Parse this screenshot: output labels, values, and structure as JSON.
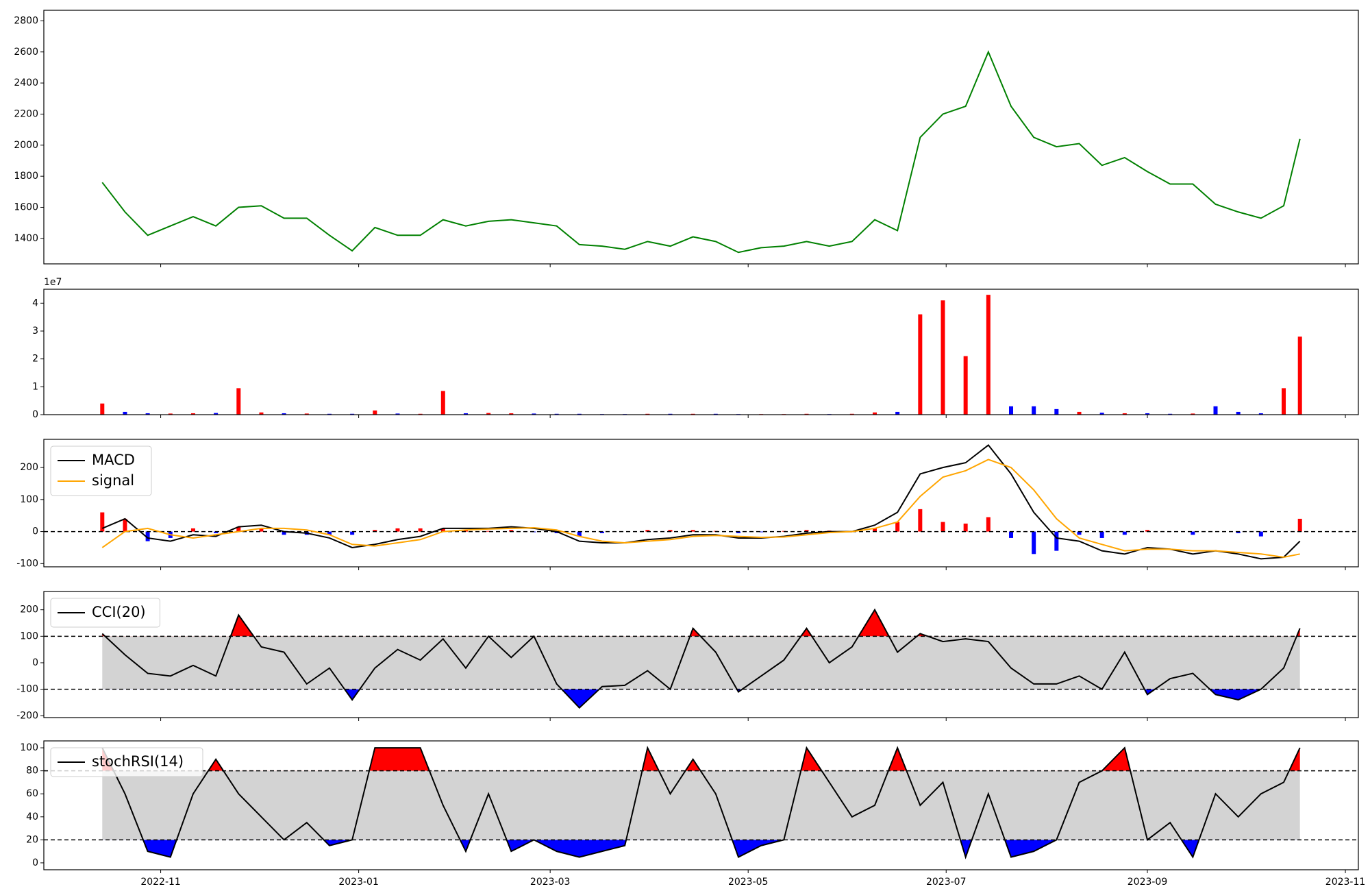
{
  "chart_data": [
    {
      "type": "line",
      "ylim": [
        1236,
        2868
      ],
      "yticks": [
        1400,
        1600,
        1800,
        2000,
        2200,
        2400,
        2600,
        2800
      ],
      "series": [
        {
          "color": "green",
          "values": [
            1760,
            1570,
            1420,
            1480,
            1540,
            1480,
            1600,
            1610,
            1530,
            1530,
            1420,
            1320,
            1470,
            1420,
            1420,
            1520,
            1480,
            1510,
            1520,
            1500,
            1480,
            1360,
            1350,
            1330,
            1380,
            1350,
            1410,
            1380,
            1310,
            1340,
            1350,
            1380,
            1350,
            1380,
            1520,
            1450,
            2050,
            2200,
            2250,
            2600,
            2250,
            2050,
            1990,
            2010,
            1870,
            1920,
            1830,
            1750,
            1750,
            1620,
            1570,
            1530,
            1610,
            2040
          ]
        }
      ]
    },
    {
      "type": "bar",
      "ylim": [
        0,
        45000000
      ],
      "offset_label": "1e7",
      "yticks": [
        {
          "value": 0,
          "label": "0"
        },
        {
          "value": 10000000,
          "label": "1"
        },
        {
          "value": 20000000,
          "label": "2"
        },
        {
          "value": 30000000,
          "label": "3"
        },
        {
          "value": 40000000,
          "label": "4"
        }
      ],
      "up_color": "red",
      "down_color": "blue",
      "values": [
        4000000,
        1000000,
        500000,
        400000,
        500000,
        600000,
        9500000,
        800000,
        500000,
        400000,
        300000,
        300000,
        1500000,
        400000,
        300000,
        8500000,
        500000,
        600000,
        500000,
        400000,
        300000,
        300000,
        200000,
        200000,
        300000,
        300000,
        300000,
        300000,
        200000,
        200000,
        200000,
        300000,
        200000,
        300000,
        800000,
        1000000,
        36000000,
        41000000,
        21000000,
        43000000,
        3000000,
        3000000,
        2000000,
        1000000,
        700000,
        500000,
        500000,
        300000,
        400000,
        3000000,
        1000000,
        500000,
        9500000,
        28000000
      ]
    },
    {
      "type": "line",
      "ylim": [
        -110,
        288
      ],
      "yticks": [
        -100,
        0,
        100,
        200
      ],
      "hlines": [
        0
      ],
      "legend": "upper left",
      "series": [
        {
          "name": "MACD",
          "color": "#000000",
          "values": [
            10,
            40,
            -20,
            -30,
            -10,
            -15,
            15,
            20,
            0,
            -5,
            -20,
            -50,
            -40,
            -25,
            -15,
            10,
            10,
            10,
            15,
            10,
            0,
            -30,
            -35,
            -35,
            -25,
            -20,
            -10,
            -10,
            -20,
            -20,
            -15,
            -5,
            0,
            0,
            20,
            60,
            180,
            200,
            215,
            270,
            180,
            60,
            -20,
            -30,
            -60,
            -70,
            -50,
            -55,
            -70,
            -60,
            -70,
            -85,
            -80,
            -30
          ]
        },
        {
          "name": "signal",
          "color": "orange",
          "values": [
            -50,
            0,
            10,
            -10,
            -20,
            -10,
            0,
            10,
            10,
            5,
            -10,
            -40,
            -45,
            -35,
            -25,
            0,
            5,
            8,
            10,
            12,
            5,
            -15,
            -30,
            -35,
            -30,
            -25,
            -15,
            -12,
            -15,
            -18,
            -17,
            -10,
            -3,
            0,
            10,
            30,
            110,
            170,
            190,
            225,
            200,
            130,
            40,
            -20,
            -40,
            -60,
            -55,
            -55,
            -60,
            -60,
            -65,
            -70,
            -80,
            -70
          ]
        }
      ],
      "histogram": {
        "up_color": "red",
        "down_color": "blue",
        "values": [
          60,
          40,
          -30,
          -20,
          10,
          -5,
          15,
          10,
          -10,
          -10,
          -10,
          -10,
          5,
          10,
          10,
          10,
          5,
          2,
          5,
          -2,
          -5,
          -15,
          -5,
          0,
          5,
          5,
          5,
          2,
          -5,
          -2,
          2,
          5,
          3,
          0,
          10,
          30,
          70,
          30,
          25,
          45,
          -20,
          -70,
          -60,
          -10,
          -20,
          -10,
          5,
          0,
          -10,
          0,
          -5,
          -15,
          0,
          40
        ]
      }
    },
    {
      "type": "line",
      "ylim": [
        -207,
        269
      ],
      "yticks": [
        -200,
        -100,
        0,
        100,
        200
      ],
      "bands": [
        -100,
        100
      ],
      "band_fill": "lightgray",
      "above_color": "red",
      "below_color": "blue",
      "legend": "upper left",
      "series": [
        {
          "name": "CCI(20)",
          "color": "#000000",
          "values": [
            110,
            30,
            -40,
            -50,
            -10,
            -50,
            180,
            60,
            40,
            -80,
            -20,
            -140,
            -20,
            50,
            10,
            90,
            -20,
            100,
            20,
            100,
            -80,
            -170,
            -90,
            -85,
            -30,
            -100,
            130,
            40,
            -110,
            -50,
            10,
            130,
            0,
            60,
            200,
            40,
            110,
            80,
            90,
            80,
            -20,
            -80,
            -80,
            -50,
            -100,
            40,
            -120,
            -60,
            -40,
            -120,
            -140,
            -100,
            -20,
            130
          ]
        }
      ]
    },
    {
      "type": "line",
      "ylim": [
        -6,
        106
      ],
      "yticks": [
        0,
        20,
        40,
        60,
        80,
        100
      ],
      "bands": [
        20,
        80
      ],
      "band_fill": "lightgray",
      "above_color": "red",
      "below_color": "blue",
      "legend": "upper left",
      "xlim": [
        "2022-09-26",
        "2023-11-05"
      ],
      "xticks": [
        {
          "value": "2022-11-01",
          "label": "2022-11"
        },
        {
          "value": "2023-01-01",
          "label": "2023-01"
        },
        {
          "value": "2023-03-01",
          "label": "2023-03"
        },
        {
          "value": "2023-05-01",
          "label": "2023-05"
        },
        {
          "value": "2023-07-01",
          "label": "2023-07"
        },
        {
          "value": "2023-09-01",
          "label": "2023-09"
        },
        {
          "value": "2023-11-01",
          "label": "2023-11"
        }
      ],
      "x": [
        "2022-10-14",
        "2022-10-21",
        "2022-10-28",
        "2022-11-04",
        "2022-11-11",
        "2022-11-18",
        "2022-11-25",
        "2022-12-02",
        "2022-12-09",
        "2022-12-16",
        "2022-12-23",
        "2022-12-30",
        "2023-01-06",
        "2023-01-13",
        "2023-01-20",
        "2023-01-27",
        "2023-02-03",
        "2023-02-10",
        "2023-02-17",
        "2023-02-24",
        "2023-03-03",
        "2023-03-10",
        "2023-03-17",
        "2023-03-24",
        "2023-03-31",
        "2023-04-07",
        "2023-04-14",
        "2023-04-21",
        "2023-04-28",
        "2023-05-05",
        "2023-05-12",
        "2023-05-19",
        "2023-05-26",
        "2023-06-02",
        "2023-06-09",
        "2023-06-16",
        "2023-06-23",
        "2023-06-30",
        "2023-07-07",
        "2023-07-14",
        "2023-07-21",
        "2023-07-28",
        "2023-08-04",
        "2023-08-11",
        "2023-08-18",
        "2023-08-25",
        "2023-09-01",
        "2023-09-08",
        "2023-09-15",
        "2023-09-22",
        "2023-09-29",
        "2023-10-06",
        "2023-10-13",
        "2023-10-18"
      ],
      "series": [
        {
          "name": "stochRSI(14)",
          "color": "#000000",
          "values": [
            100,
            60,
            10,
            5,
            60,
            90,
            60,
            40,
            20,
            35,
            15,
            20,
            100,
            100,
            100,
            50,
            10,
            60,
            10,
            20,
            10,
            5,
            10,
            15,
            100,
            60,
            90,
            60,
            5,
            15,
            20,
            100,
            70,
            40,
            50,
            100,
            50,
            70,
            5,
            60,
            5,
            10,
            20,
            70,
            80,
            100,
            20,
            35,
            5,
            60,
            40,
            60,
            70,
            100
          ]
        }
      ]
    }
  ]
}
